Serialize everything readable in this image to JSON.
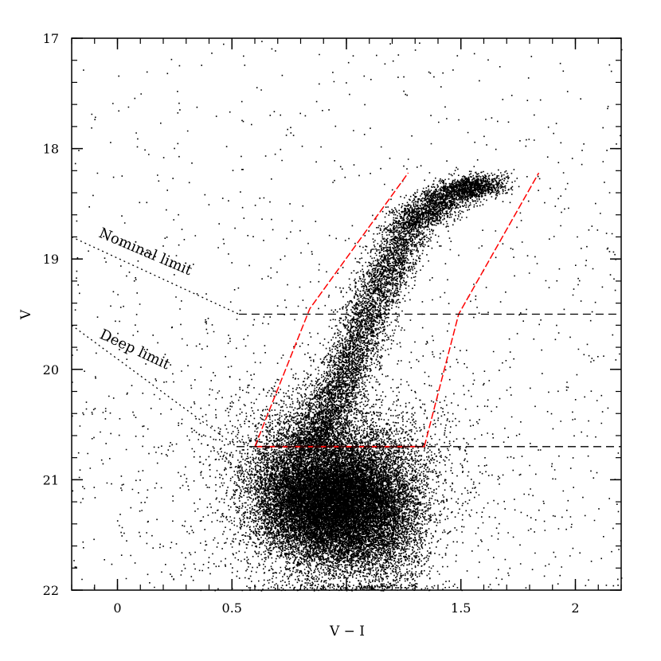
{
  "chart_data": {
    "type": "scatter",
    "title": "",
    "xlabel": "V − I",
    "ylabel": "V",
    "xlim": [
      -0.2,
      2.2
    ],
    "ylim": [
      22,
      17
    ],
    "y_inverted": true,
    "grid": false,
    "x_ticks": [
      {
        "value": 0,
        "label": "0"
      },
      {
        "value": 0.5,
        "label": "0.5"
      },
      {
        "value": 1,
        "label": ""
      },
      {
        "value": 1.5,
        "label": "1.5"
      },
      {
        "value": 2,
        "label": "2"
      }
    ],
    "y_ticks": [
      {
        "value": 17,
        "label": "17"
      },
      {
        "value": 18,
        "label": "18"
      },
      {
        "value": 19,
        "label": "19"
      },
      {
        "value": 20,
        "label": "20"
      },
      {
        "value": 21,
        "label": "21"
      },
      {
        "value": 22,
        "label": "22"
      }
    ],
    "point_color": "#000000",
    "selection_color": "#ff0000",
    "selection_region": {
      "left_edge": [
        [
          0.6,
          20.7
        ],
        [
          0.84,
          19.45
        ],
        [
          1.27,
          18.22
        ]
      ],
      "right_edge": [
        [
          1.34,
          20.7
        ],
        [
          1.49,
          19.5
        ],
        [
          1.84,
          18.22
        ]
      ],
      "bottom": [
        [
          0.6,
          20.7
        ],
        [
          1.34,
          20.7
        ]
      ]
    },
    "limit_lines": [
      {
        "label": "Nominal limit",
        "points": [
          [
            -0.2,
            18.8
          ],
          [
            0.53,
            19.5
          ],
          [
            2.2,
            19.5
          ]
        ]
      },
      {
        "label": "Deep limit",
        "points": [
          [
            -0.2,
            19.6
          ],
          [
            0.52,
            20.7
          ],
          [
            2.2,
            20.7
          ]
        ]
      }
    ],
    "distribution": {
      "field_stars": {
        "count": 1300,
        "x_range": [
          -0.2,
          2.2
        ],
        "y_range": [
          17,
          22
        ]
      },
      "main_sequence_turnoff": {
        "center": [
          0.95,
          21.2
        ],
        "sigma": [
          0.14,
          0.28
        ],
        "count": 14000
      },
      "blue_lobe": {
        "center": [
          0.74,
          21.1
        ],
        "sigma": [
          0.09,
          0.32
        ],
        "count": 2500
      },
      "red_lobe": {
        "center": [
          1.15,
          21.3
        ],
        "sigma": [
          0.1,
          0.35
        ],
        "count": 2800
      },
      "halo": {
        "center": [
          0.95,
          21.0
        ],
        "sigma": [
          0.28,
          0.45
        ],
        "count": 4000
      },
      "giant_branch": {
        "path": [
          [
            0.85,
            20.7
          ],
          [
            1.0,
            20.0
          ],
          [
            1.13,
            19.3
          ],
          [
            1.27,
            18.7
          ],
          [
            1.45,
            18.4
          ],
          [
            1.62,
            18.3
          ]
        ],
        "width": 0.06,
        "count": 7500
      }
    }
  }
}
